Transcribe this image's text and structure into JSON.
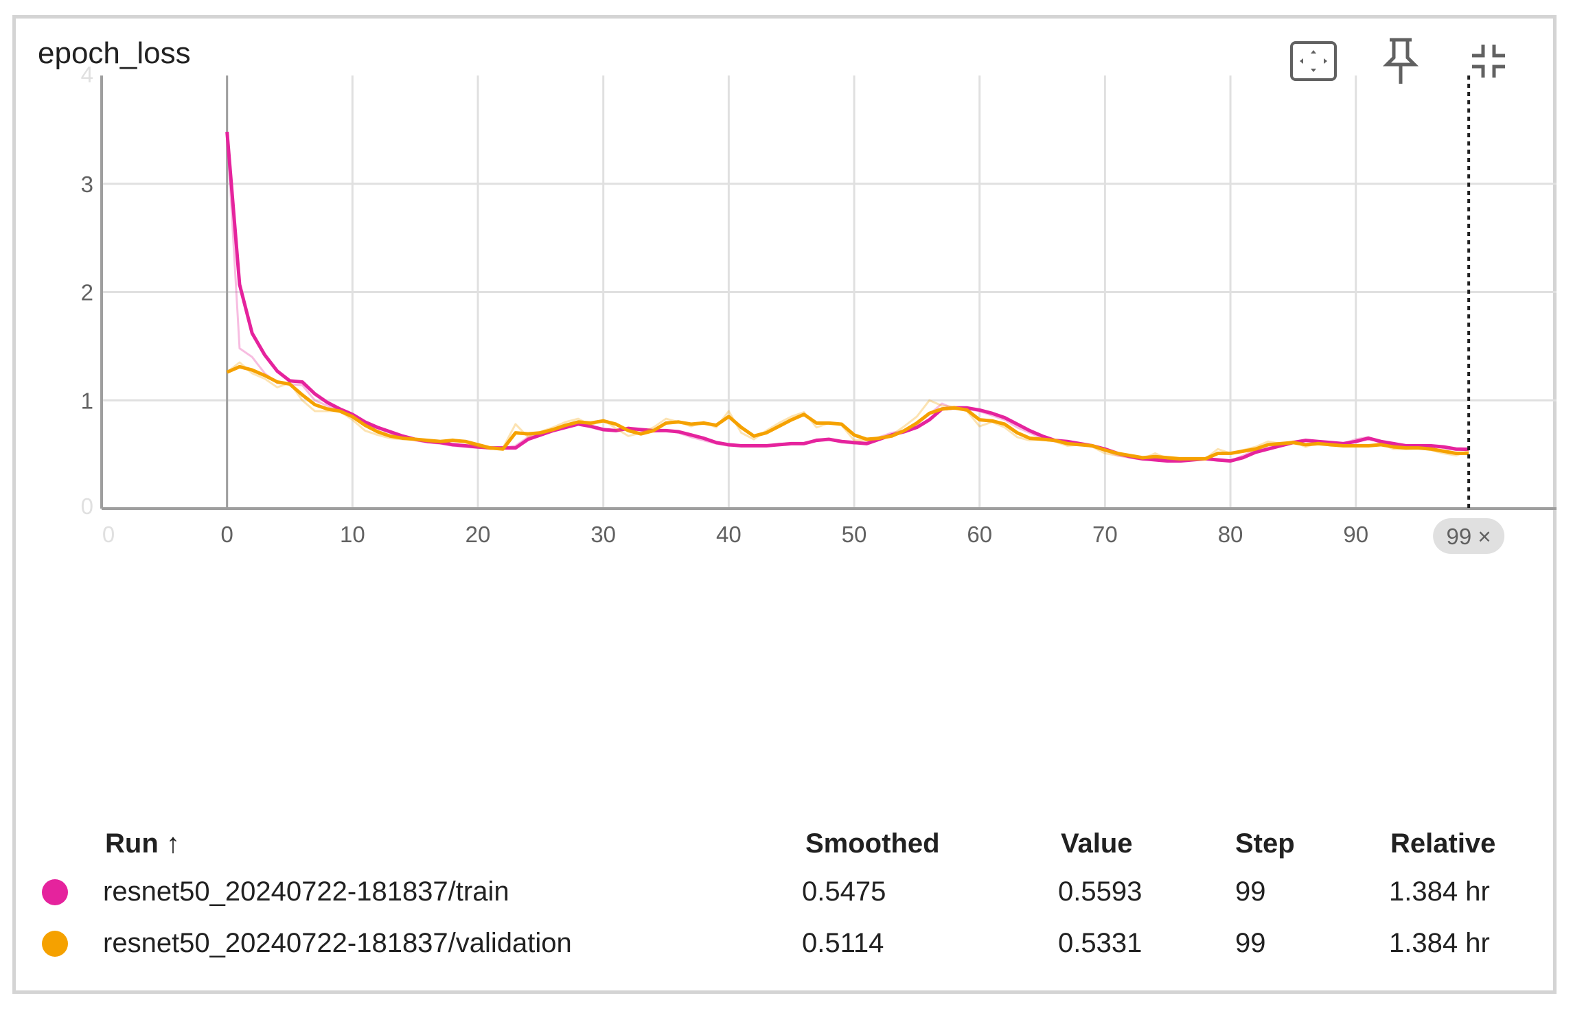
{
  "card": {
    "title": "epoch_loss",
    "tools": [
      {
        "icon": "fit-domain-icon"
      },
      {
        "icon": "pin-icon"
      },
      {
        "icon": "collapse-icon"
      }
    ]
  },
  "colors": {
    "train": "#e5239d",
    "validation": "#f5a100",
    "grid": "#e0e0e0",
    "axis": "#9e9e9e"
  },
  "chart_data": {
    "type": "line",
    "title": "epoch_loss",
    "xlabel": "",
    "ylabel": "",
    "xlim": [
      -10,
      106
    ],
    "ylim": [
      0,
      4
    ],
    "x_ticks": [
      0,
      10,
      20,
      30,
      40,
      50,
      60,
      70,
      80,
      90
    ],
    "y_ticks": [
      1,
      2,
      3
    ],
    "faint_x_tick_labels": [
      "0"
    ],
    "faint_y_tick_labels": [
      "4",
      "0"
    ],
    "grid": true,
    "cursor_step": 99,
    "cursor_label": "99 ×",
    "series": [
      {
        "name": "resnet50_20240722-181837/train",
        "smoothed": [
          3.48,
          2.07,
          1.62,
          1.42,
          1.27,
          1.18,
          1.17,
          1.06,
          0.98,
          0.92,
          0.87,
          0.8,
          0.75,
          0.71,
          0.67,
          0.64,
          0.62,
          0.61,
          0.59,
          0.58,
          0.57,
          0.56,
          0.56,
          0.56,
          0.64,
          0.68,
          0.72,
          0.75,
          0.78,
          0.76,
          0.73,
          0.72,
          0.74,
          0.73,
          0.72,
          0.72,
          0.71,
          0.68,
          0.65,
          0.61,
          0.59,
          0.58,
          0.58,
          0.58,
          0.59,
          0.6,
          0.6,
          0.63,
          0.64,
          0.62,
          0.61,
          0.6,
          0.64,
          0.68,
          0.71,
          0.75,
          0.82,
          0.92,
          0.93,
          0.93,
          0.91,
          0.88,
          0.84,
          0.78,
          0.72,
          0.67,
          0.63,
          0.62,
          0.6,
          0.58,
          0.55,
          0.51,
          0.48,
          0.46,
          0.45,
          0.44,
          0.44,
          0.45,
          0.46,
          0.45,
          0.44,
          0.47,
          0.52,
          0.55,
          0.58,
          0.61,
          0.63,
          0.62,
          0.61,
          0.6,
          0.62,
          0.65,
          0.62,
          0.6,
          0.58,
          0.58,
          0.58,
          0.57,
          0.55,
          0.5475
        ],
        "raw": [
          3.48,
          1.48,
          1.4,
          1.25,
          1.16,
          1.15,
          1.14,
          1.0,
          0.95,
          0.9,
          0.86,
          0.78,
          0.74,
          0.7,
          0.66,
          0.63,
          0.61,
          0.6,
          0.58,
          0.57,
          0.56,
          0.56,
          0.56,
          0.58,
          0.66,
          0.69,
          0.73,
          0.76,
          0.79,
          0.75,
          0.72,
          0.72,
          0.75,
          0.72,
          0.71,
          0.72,
          0.7,
          0.66,
          0.63,
          0.6,
          0.58,
          0.58,
          0.58,
          0.58,
          0.6,
          0.6,
          0.6,
          0.64,
          0.64,
          0.61,
          0.6,
          0.61,
          0.66,
          0.7,
          0.72,
          0.78,
          0.87,
          0.97,
          0.92,
          0.92,
          0.9,
          0.86,
          0.82,
          0.75,
          0.7,
          0.65,
          0.62,
          0.62,
          0.59,
          0.57,
          0.54,
          0.49,
          0.47,
          0.45,
          0.45,
          0.44,
          0.44,
          0.46,
          0.46,
          0.44,
          0.44,
          0.49,
          0.54,
          0.56,
          0.59,
          0.62,
          0.63,
          0.61,
          0.6,
          0.6,
          0.64,
          0.66,
          0.6,
          0.59,
          0.57,
          0.58,
          0.58,
          0.56,
          0.54,
          0.5593
        ]
      },
      {
        "name": "resnet50_20240722-181837/validation",
        "smoothed": [
          1.26,
          1.31,
          1.28,
          1.23,
          1.17,
          1.15,
          1.05,
          0.96,
          0.92,
          0.9,
          0.85,
          0.77,
          0.71,
          0.67,
          0.65,
          0.64,
          0.63,
          0.62,
          0.63,
          0.62,
          0.59,
          0.56,
          0.55,
          0.7,
          0.69,
          0.7,
          0.73,
          0.77,
          0.8,
          0.79,
          0.81,
          0.78,
          0.72,
          0.69,
          0.72,
          0.79,
          0.8,
          0.78,
          0.79,
          0.77,
          0.85,
          0.75,
          0.67,
          0.7,
          0.76,
          0.82,
          0.87,
          0.79,
          0.79,
          0.78,
          0.68,
          0.64,
          0.65,
          0.67,
          0.72,
          0.79,
          0.88,
          0.92,
          0.93,
          0.91,
          0.82,
          0.81,
          0.78,
          0.7,
          0.65,
          0.64,
          0.63,
          0.6,
          0.59,
          0.58,
          0.54,
          0.51,
          0.49,
          0.47,
          0.48,
          0.47,
          0.46,
          0.46,
          0.46,
          0.51,
          0.51,
          0.53,
          0.55,
          0.59,
          0.6,
          0.61,
          0.59,
          0.6,
          0.59,
          0.58,
          0.58,
          0.58,
          0.59,
          0.57,
          0.56,
          0.56,
          0.55,
          0.53,
          0.51,
          0.5114
        ],
        "raw": [
          1.26,
          1.35,
          1.25,
          1.2,
          1.12,
          1.16,
          1.0,
          0.9,
          0.9,
          0.9,
          0.82,
          0.72,
          0.68,
          0.65,
          0.64,
          0.64,
          0.62,
          0.62,
          0.64,
          0.61,
          0.57,
          0.55,
          0.56,
          0.78,
          0.66,
          0.71,
          0.75,
          0.8,
          0.83,
          0.77,
          0.82,
          0.74,
          0.67,
          0.7,
          0.75,
          0.83,
          0.8,
          0.76,
          0.8,
          0.75,
          0.9,
          0.7,
          0.64,
          0.72,
          0.79,
          0.85,
          0.89,
          0.75,
          0.79,
          0.77,
          0.63,
          0.63,
          0.66,
          0.68,
          0.76,
          0.85,
          1.0,
          0.95,
          0.94,
          0.9,
          0.76,
          0.8,
          0.75,
          0.66,
          0.63,
          0.64,
          0.62,
          0.58,
          0.59,
          0.57,
          0.51,
          0.49,
          0.48,
          0.46,
          0.51,
          0.46,
          0.45,
          0.46,
          0.46,
          0.55,
          0.51,
          0.54,
          0.57,
          0.62,
          0.6,
          0.62,
          0.57,
          0.61,
          0.58,
          0.58,
          0.58,
          0.58,
          0.6,
          0.55,
          0.55,
          0.56,
          0.54,
          0.51,
          0.49,
          0.5331
        ]
      }
    ]
  },
  "table": {
    "headers": {
      "run": "Run ↑",
      "smoothed": "Smoothed",
      "value": "Value",
      "step": "Step",
      "relative": "Relative"
    },
    "rows": [
      {
        "run": "resnet50_20240722-181837/train",
        "smoothed": "0.5475",
        "value": "0.5593",
        "step": "99",
        "relative": "1.384 hr"
      },
      {
        "run": "resnet50_20240722-181837/validation",
        "smoothed": "0.5114",
        "value": "0.5331",
        "step": "99",
        "relative": "1.384 hr"
      }
    ]
  }
}
